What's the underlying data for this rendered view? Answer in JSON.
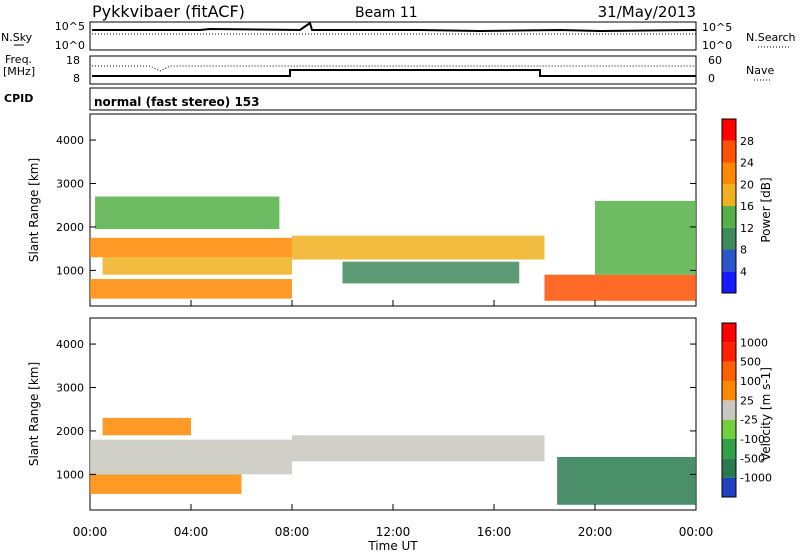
{
  "header": {
    "station": "Pykkvibaer (fitACF)",
    "beam": "Beam 11",
    "date": "31/May/2013"
  },
  "nsky_panel": {
    "label": "N.Sky",
    "left_top": "10^5",
    "left_bottom": "10^0",
    "right_top": "10^5",
    "right_bottom": "10^0",
    "right_label": "N.Search"
  },
  "freq_panel": {
    "label_line1": "Freq.",
    "label_line2": "[MHz]",
    "left_top": "18",
    "left_bottom": "8",
    "right_top": "60",
    "right_bottom": "0",
    "right_label": "Nave"
  },
  "cpid_panel": {
    "label": "CPID",
    "text": "normal (fast stereo) 153"
  },
  "chart_data": [
    {
      "type": "heatmap",
      "name": "Power panel",
      "xlabel": "Time UT",
      "ylabel": "Slant Range [km]",
      "x_ticks": [
        "00:00",
        "04:00",
        "08:00",
        "12:00",
        "16:00",
        "20:00",
        "00:00"
      ],
      "y_ticks": [
        1000,
        2000,
        3000,
        4000
      ],
      "xlim": [
        0,
        24
      ],
      "ylim": [
        180,
        4600
      ],
      "colorbar_label": "Power [dB]",
      "colorbar_ticks": [
        "4",
        "8",
        "12",
        "16",
        "20",
        "24",
        "28"
      ],
      "colors": [
        "#1a1aff",
        "#2b55c8",
        "#3f8a5a",
        "#55b045",
        "#f0b020",
        "#ff8800",
        "#ff5000",
        "#ff0000"
      ],
      "bands": [
        {
          "t0": 0.0,
          "t1": 8.0,
          "r0": 350,
          "r1": 800,
          "level": 5
        },
        {
          "t0": 0.5,
          "t1": 8.0,
          "r0": 900,
          "r1": 1300,
          "level": 4
        },
        {
          "t0": 0.0,
          "t1": 8.0,
          "r0": 1300,
          "r1": 1750,
          "level": 5
        },
        {
          "t0": 0.2,
          "t1": 7.5,
          "r0": 1950,
          "r1": 2700,
          "level": 3
        },
        {
          "t0": 8.0,
          "t1": 18.0,
          "r0": 1250,
          "r1": 1800,
          "level": 4
        },
        {
          "t0": 10.0,
          "t1": 17.0,
          "r0": 700,
          "r1": 1200,
          "level": 2
        },
        {
          "t0": 18.0,
          "t1": 24.0,
          "r0": 300,
          "r1": 900,
          "level": 6
        },
        {
          "t0": 20.0,
          "t1": 24.0,
          "r0": 900,
          "r1": 2600,
          "level": 3
        }
      ]
    },
    {
      "type": "heatmap",
      "name": "Velocity panel",
      "xlabel": "Time UT",
      "ylabel": "Slant Range [km]",
      "x_ticks": [
        "00:00",
        "04:00",
        "08:00",
        "12:00",
        "16:00",
        "20:00",
        "00:00"
      ],
      "y_ticks": [
        1000,
        2000,
        3000,
        4000
      ],
      "xlim": [
        0,
        24
      ],
      "ylim": [
        180,
        4600
      ],
      "colorbar_label": "Velocity [m s-1]",
      "colorbar_ticks": [
        "1000",
        "500",
        "100",
        "25",
        "-25",
        "-100",
        "-500",
        "-1000"
      ],
      "colors": [
        "#2040c0",
        "#2a7a50",
        "#30a048",
        "#70d040",
        "#c8c8c0",
        "#ff8800",
        "#ff6000",
        "#ff2000",
        "#ff0000"
      ],
      "bands": [
        {
          "t0": 0.0,
          "t1": 6.0,
          "r0": 550,
          "r1": 1000,
          "level": 5
        },
        {
          "t0": 0.0,
          "t1": 8.0,
          "r0": 1000,
          "r1": 1800,
          "level": 4
        },
        {
          "t0": 0.5,
          "t1": 4.0,
          "r0": 1900,
          "r1": 2300,
          "level": 5
        },
        {
          "t0": 8.0,
          "t1": 18.0,
          "r0": 1300,
          "r1": 1900,
          "level": 4
        },
        {
          "t0": 18.5,
          "t1": 24.0,
          "r0": 300,
          "r1": 1400,
          "level": 1
        }
      ]
    }
  ]
}
